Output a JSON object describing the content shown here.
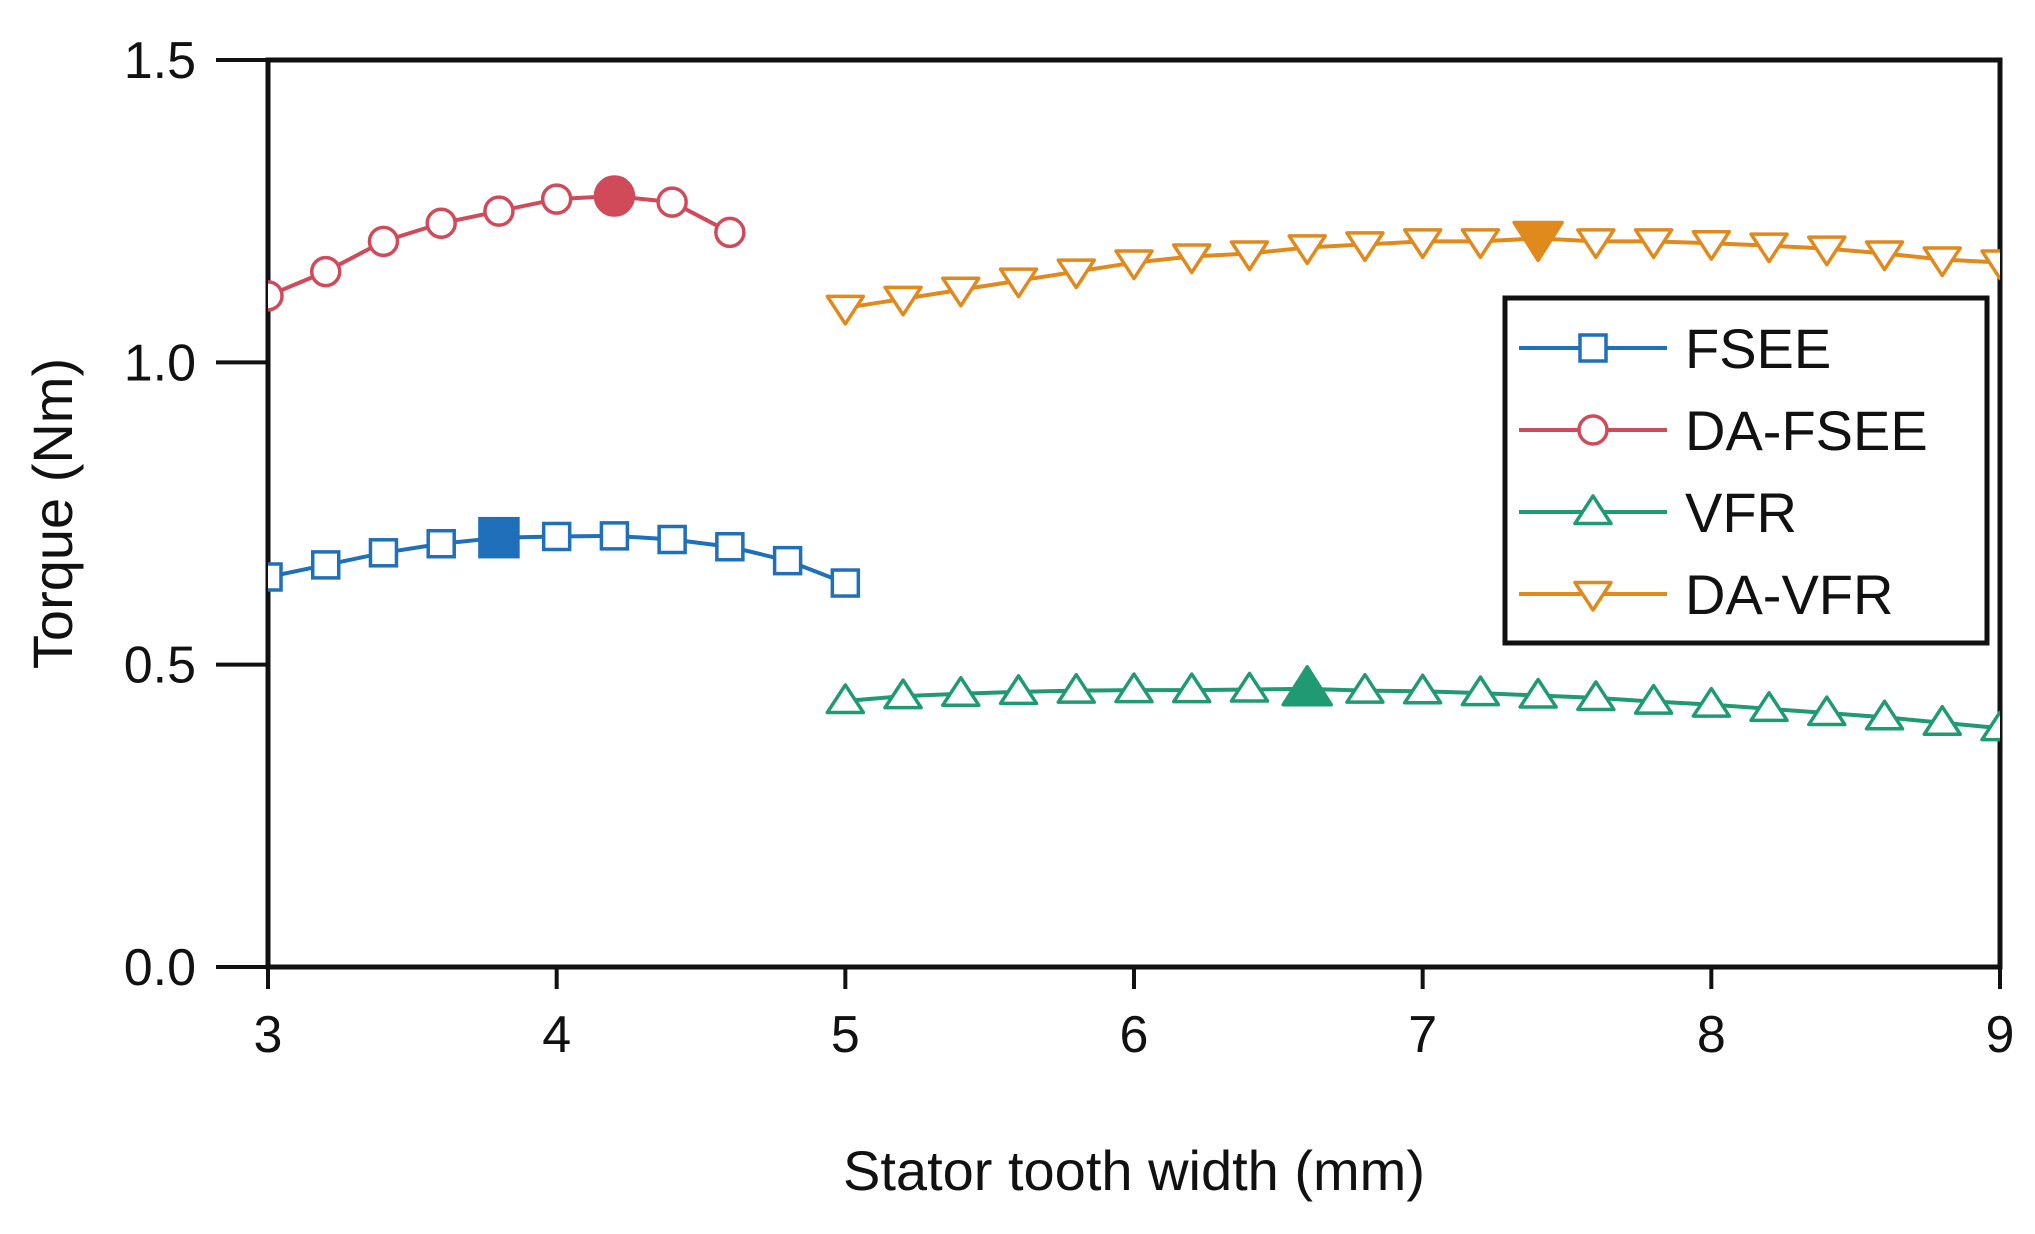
{
  "chart_data": {
    "type": "line",
    "xlabel": "Stator tooth width (mm)",
    "ylabel": "Torque (Nm)",
    "xlim": [
      3,
      9
    ],
    "ylim": [
      0,
      1.5
    ],
    "x_ticks": [
      "3",
      "4",
      "5",
      "6",
      "7",
      "8",
      "9"
    ],
    "y_ticks": [
      "0.0",
      "0.5",
      "1.0",
      "1.5"
    ],
    "grid": false,
    "legend_placement": "right",
    "series": [
      {
        "name": "FSEE",
        "color": "#1f6fba",
        "marker": "square",
        "x": [
          3.0,
          3.2,
          3.4,
          3.6,
          3.8,
          4.0,
          4.2,
          4.4,
          4.6,
          4.8,
          5.0
        ],
        "y": [
          0.645,
          0.665,
          0.685,
          0.7,
          0.71,
          0.712,
          0.713,
          0.707,
          0.695,
          0.672,
          0.635
        ],
        "highlight_x": 3.8
      },
      {
        "name": "DA-FSEE",
        "color": "#d04a5a",
        "marker": "circle",
        "x": [
          3.0,
          3.2,
          3.4,
          3.6,
          3.8,
          4.0,
          4.2,
          4.4,
          4.6
        ],
        "y": [
          1.11,
          1.15,
          1.2,
          1.23,
          1.25,
          1.27,
          1.275,
          1.265,
          1.215
        ],
        "highlight_x": 4.2
      },
      {
        "name": "VFR",
        "color": "#1f9a72",
        "marker": "triangle-up",
        "x": [
          5.0,
          5.2,
          5.4,
          5.6,
          5.8,
          6.0,
          6.2,
          6.4,
          6.6,
          6.8,
          7.0,
          7.2,
          7.4,
          7.6,
          7.8,
          8.0,
          8.2,
          8.4,
          8.6,
          8.8,
          9.0
        ],
        "y": [
          0.44,
          0.448,
          0.452,
          0.455,
          0.457,
          0.458,
          0.458,
          0.459,
          0.46,
          0.457,
          0.456,
          0.453,
          0.449,
          0.445,
          0.439,
          0.434,
          0.427,
          0.42,
          0.413,
          0.404,
          0.395
        ],
        "highlight_x": 6.6
      },
      {
        "name": "DA-VFR",
        "color": "#e08a1e",
        "marker": "triangle-down",
        "x": [
          5.0,
          5.2,
          5.4,
          5.6,
          5.8,
          6.0,
          6.2,
          6.4,
          6.6,
          6.8,
          7.0,
          7.2,
          7.4,
          7.6,
          7.8,
          8.0,
          8.2,
          8.4,
          8.6,
          8.8,
          9.0
        ],
        "y": [
          1.09,
          1.105,
          1.12,
          1.135,
          1.15,
          1.165,
          1.175,
          1.18,
          1.19,
          1.195,
          1.2,
          1.2,
          1.205,
          1.2,
          1.2,
          1.197,
          1.193,
          1.188,
          1.18,
          1.17,
          1.165
        ],
        "highlight_x": 7.4
      }
    ]
  }
}
